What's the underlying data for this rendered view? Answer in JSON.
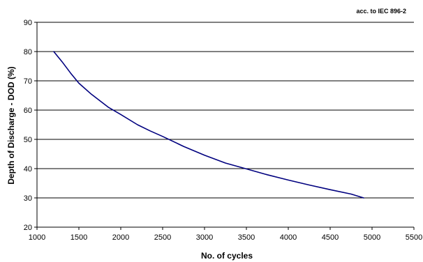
{
  "chart_data": {
    "type": "line",
    "annotation": "acc. to IEC 896-2",
    "xlabel": "No. of cycles",
    "ylabel": "Depth of Discharge - DOD (%)",
    "xlim": [
      1000,
      5500
    ],
    "ylim": [
      20,
      90
    ],
    "xticks": [
      1000,
      1500,
      2000,
      2500,
      3000,
      3500,
      4000,
      4500,
      5000,
      5500
    ],
    "yticks": [
      20,
      30,
      40,
      50,
      60,
      70,
      80,
      90
    ],
    "grid": "horizontal",
    "line_color": "#00007f",
    "series": [
      {
        "x": [
          1200,
          1300,
          1400,
          1500,
          1650,
          1850,
          2000,
          2200,
          2350,
          2500,
          2750,
          3000,
          3250,
          3500,
          3750,
          4000,
          4250,
          4500,
          4750,
          4900
        ],
        "y": [
          80,
          76.5,
          72.7,
          69.2,
          65.4,
          61.0,
          58.5,
          55.0,
          52.9,
          51.0,
          47.6,
          44.6,
          41.9,
          39.9,
          37.9,
          36.1,
          34.4,
          32.8,
          31.3,
          30.0
        ]
      }
    ]
  }
}
